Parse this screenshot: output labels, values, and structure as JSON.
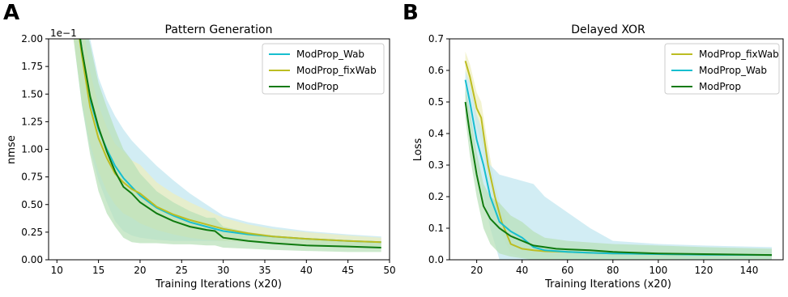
{
  "chart_data": [
    {
      "type": "line",
      "panel_letter": "A",
      "title": "Pattern Generation",
      "xlabel": "Training Iterations (x20)",
      "ylabel": "nmse",
      "y_multiplier": "1e−1",
      "xlim": [
        9,
        50
      ],
      "ylim": [
        0,
        2.0
      ],
      "xticks": [
        "10",
        "15",
        "20",
        "25",
        "30",
        "35",
        "40",
        "45",
        "50"
      ],
      "xtick_values": [
        10,
        15,
        20,
        25,
        30,
        35,
        40,
        45,
        50
      ],
      "yticks": [
        "0.00",
        "0.25",
        "0.50",
        "0.75",
        "1.00",
        "1.25",
        "1.50",
        "1.75",
        "2.00"
      ],
      "ytick_values": [
        0,
        0.25,
        0.5,
        0.75,
        1.0,
        1.25,
        1.5,
        1.75,
        2.0
      ],
      "legend_position": "top-right",
      "grid": false,
      "series": [
        {
          "name": "ModProp_Wab",
          "color": "#17becf",
          "band_color": "#bfe6f0",
          "x": [
            12,
            13,
            14,
            15,
            16,
            17,
            18,
            19,
            20,
            22,
            24,
            26,
            28,
            30,
            33,
            36,
            40,
            45,
            49
          ],
          "y": [
            2.4,
            1.9,
            1.45,
            1.18,
            1.0,
            0.85,
            0.74,
            0.66,
            0.58,
            0.47,
            0.4,
            0.34,
            0.3,
            0.26,
            0.23,
            0.21,
            0.19,
            0.17,
            0.16
          ],
          "lower": [
            2.0,
            1.4,
            1.0,
            0.72,
            0.52,
            0.35,
            0.26,
            0.22,
            0.2,
            0.18,
            0.17,
            0.17,
            0.17,
            0.17,
            0.16,
            0.14,
            0.13,
            0.12,
            0.11
          ],
          "upper": [
            2.4,
            2.3,
            2.0,
            1.65,
            1.45,
            1.3,
            1.18,
            1.08,
            1.0,
            0.85,
            0.72,
            0.6,
            0.5,
            0.4,
            0.34,
            0.3,
            0.26,
            0.23,
            0.21
          ]
        },
        {
          "name": "ModProp_fixWab",
          "color": "#bcbd22",
          "band_color": "#eeeebb",
          "x": [
            12,
            13,
            14,
            15,
            16,
            17,
            18,
            19,
            20,
            22,
            24,
            26,
            28,
            30,
            33,
            36,
            40,
            45,
            49
          ],
          "y": [
            2.4,
            1.85,
            1.38,
            1.1,
            0.92,
            0.78,
            0.7,
            0.64,
            0.6,
            0.48,
            0.41,
            0.36,
            0.32,
            0.28,
            0.24,
            0.21,
            0.19,
            0.17,
            0.16
          ],
          "lower": [
            2.0,
            1.45,
            1.05,
            0.8,
            0.62,
            0.5,
            0.42,
            0.38,
            0.33,
            0.27,
            0.23,
            0.2,
            0.18,
            0.17,
            0.16,
            0.15,
            0.14,
            0.13,
            0.12
          ],
          "upper": [
            2.4,
            2.2,
            1.7,
            1.4,
            1.2,
            1.05,
            0.98,
            0.9,
            0.86,
            0.7,
            0.6,
            0.52,
            0.45,
            0.38,
            0.32,
            0.28,
            0.25,
            0.22,
            0.2
          ]
        },
        {
          "name": "ModProp",
          "color": "#0f7a0f",
          "band_color": "#b7e0b7",
          "x": [
            12,
            13,
            14,
            15,
            16,
            17,
            18,
            19,
            20,
            22,
            24,
            26,
            28,
            29,
            30,
            33,
            36,
            40,
            45,
            49
          ],
          "y": [
            2.4,
            1.9,
            1.48,
            1.2,
            0.98,
            0.8,
            0.66,
            0.6,
            0.52,
            0.42,
            0.35,
            0.3,
            0.27,
            0.26,
            0.2,
            0.17,
            0.15,
            0.13,
            0.12,
            0.11
          ],
          "lower": [
            2.0,
            1.4,
            0.95,
            0.62,
            0.42,
            0.3,
            0.2,
            0.16,
            0.15,
            0.15,
            0.14,
            0.14,
            0.13,
            0.13,
            0.11,
            0.1,
            0.09,
            0.08,
            0.07,
            0.07
          ],
          "upper": [
            2.4,
            2.25,
            1.95,
            1.6,
            1.38,
            1.18,
            1.0,
            0.9,
            0.78,
            0.62,
            0.52,
            0.44,
            0.38,
            0.38,
            0.3,
            0.25,
            0.22,
            0.19,
            0.17,
            0.15
          ]
        }
      ]
    },
    {
      "type": "line",
      "panel_letter": "B",
      "title": "Delayed XOR",
      "xlabel": "Training Iterations (x20)",
      "ylabel": "Loss",
      "xlim": [
        8,
        155
      ],
      "ylim": [
        0,
        0.7
      ],
      "xticks": [
        "20",
        "40",
        "60",
        "80",
        "100",
        "120",
        "140"
      ],
      "xtick_values": [
        20,
        40,
        60,
        80,
        100,
        120,
        140
      ],
      "yticks": [
        "0.0",
        "0.1",
        "0.2",
        "0.3",
        "0.4",
        "0.5",
        "0.6",
        "0.7"
      ],
      "ytick_values": [
        0,
        0.1,
        0.2,
        0.3,
        0.4,
        0.5,
        0.6,
        0.7
      ],
      "legend_position": "top-right",
      "grid": false,
      "series": [
        {
          "name": "ModProp_fixWab",
          "color": "#bcbd22",
          "band_color": "#eeeebb",
          "x": [
            15,
            17,
            20,
            22,
            25,
            28,
            31,
            35,
            40,
            45,
            50,
            60,
            70,
            80,
            100,
            120,
            150
          ],
          "y": [
            0.63,
            0.58,
            0.48,
            0.45,
            0.3,
            0.2,
            0.12,
            0.05,
            0.035,
            0.03,
            0.027,
            0.025,
            0.022,
            0.02,
            0.018,
            0.016,
            0.015
          ],
          "lower": [
            0.6,
            0.55,
            0.42,
            0.38,
            0.25,
            0.16,
            0.08,
            0.02,
            0.01,
            0.01,
            0.01,
            0.01,
            0.01,
            0.01,
            0.01,
            0.01,
            0.01
          ],
          "upper": [
            0.66,
            0.62,
            0.53,
            0.5,
            0.36,
            0.24,
            0.16,
            0.09,
            0.06,
            0.05,
            0.045,
            0.04,
            0.035,
            0.03,
            0.028,
            0.025,
            0.022
          ]
        },
        {
          "name": "ModProp_Wab",
          "color": "#17becf",
          "band_color": "#bfe6f0",
          "x": [
            15,
            17,
            20,
            23,
            26,
            30,
            35,
            40,
            45,
            50,
            60,
            70,
            80,
            100,
            120,
            150
          ],
          "y": [
            0.57,
            0.5,
            0.38,
            0.3,
            0.2,
            0.12,
            0.09,
            0.07,
            0.04,
            0.03,
            0.025,
            0.022,
            0.02,
            0.018,
            0.016,
            0.015
          ],
          "lower": [
            0.52,
            0.44,
            0.3,
            0.2,
            0.1,
            0.0,
            0.0,
            0.0,
            0.0,
            0.0,
            0.0,
            0.0,
            0.0,
            0.0,
            0.0,
            0.0
          ],
          "upper": [
            0.6,
            0.56,
            0.46,
            0.4,
            0.3,
            0.27,
            0.26,
            0.25,
            0.24,
            0.2,
            0.15,
            0.1,
            0.06,
            0.05,
            0.045,
            0.04
          ]
        },
        {
          "name": "ModProp",
          "color": "#0f7a0f",
          "band_color": "#b7e0b7",
          "x": [
            15,
            17,
            20,
            23,
            26,
            30,
            35,
            40,
            45,
            50,
            55,
            60,
            70,
            80,
            100,
            120,
            150
          ],
          "y": [
            0.5,
            0.4,
            0.27,
            0.17,
            0.13,
            0.1,
            0.075,
            0.06,
            0.045,
            0.04,
            0.035,
            0.033,
            0.03,
            0.025,
            0.02,
            0.018,
            0.015
          ],
          "lower": [
            0.45,
            0.33,
            0.2,
            0.1,
            0.05,
            0.02,
            0.01,
            0.005,
            0.0,
            0.0,
            0.0,
            0.0,
            0.0,
            0.0,
            0.0,
            0.0,
            0.0
          ],
          "upper": [
            0.55,
            0.47,
            0.34,
            0.24,
            0.2,
            0.18,
            0.14,
            0.12,
            0.09,
            0.07,
            0.065,
            0.06,
            0.055,
            0.05,
            0.045,
            0.04,
            0.035
          ]
        }
      ]
    }
  ]
}
